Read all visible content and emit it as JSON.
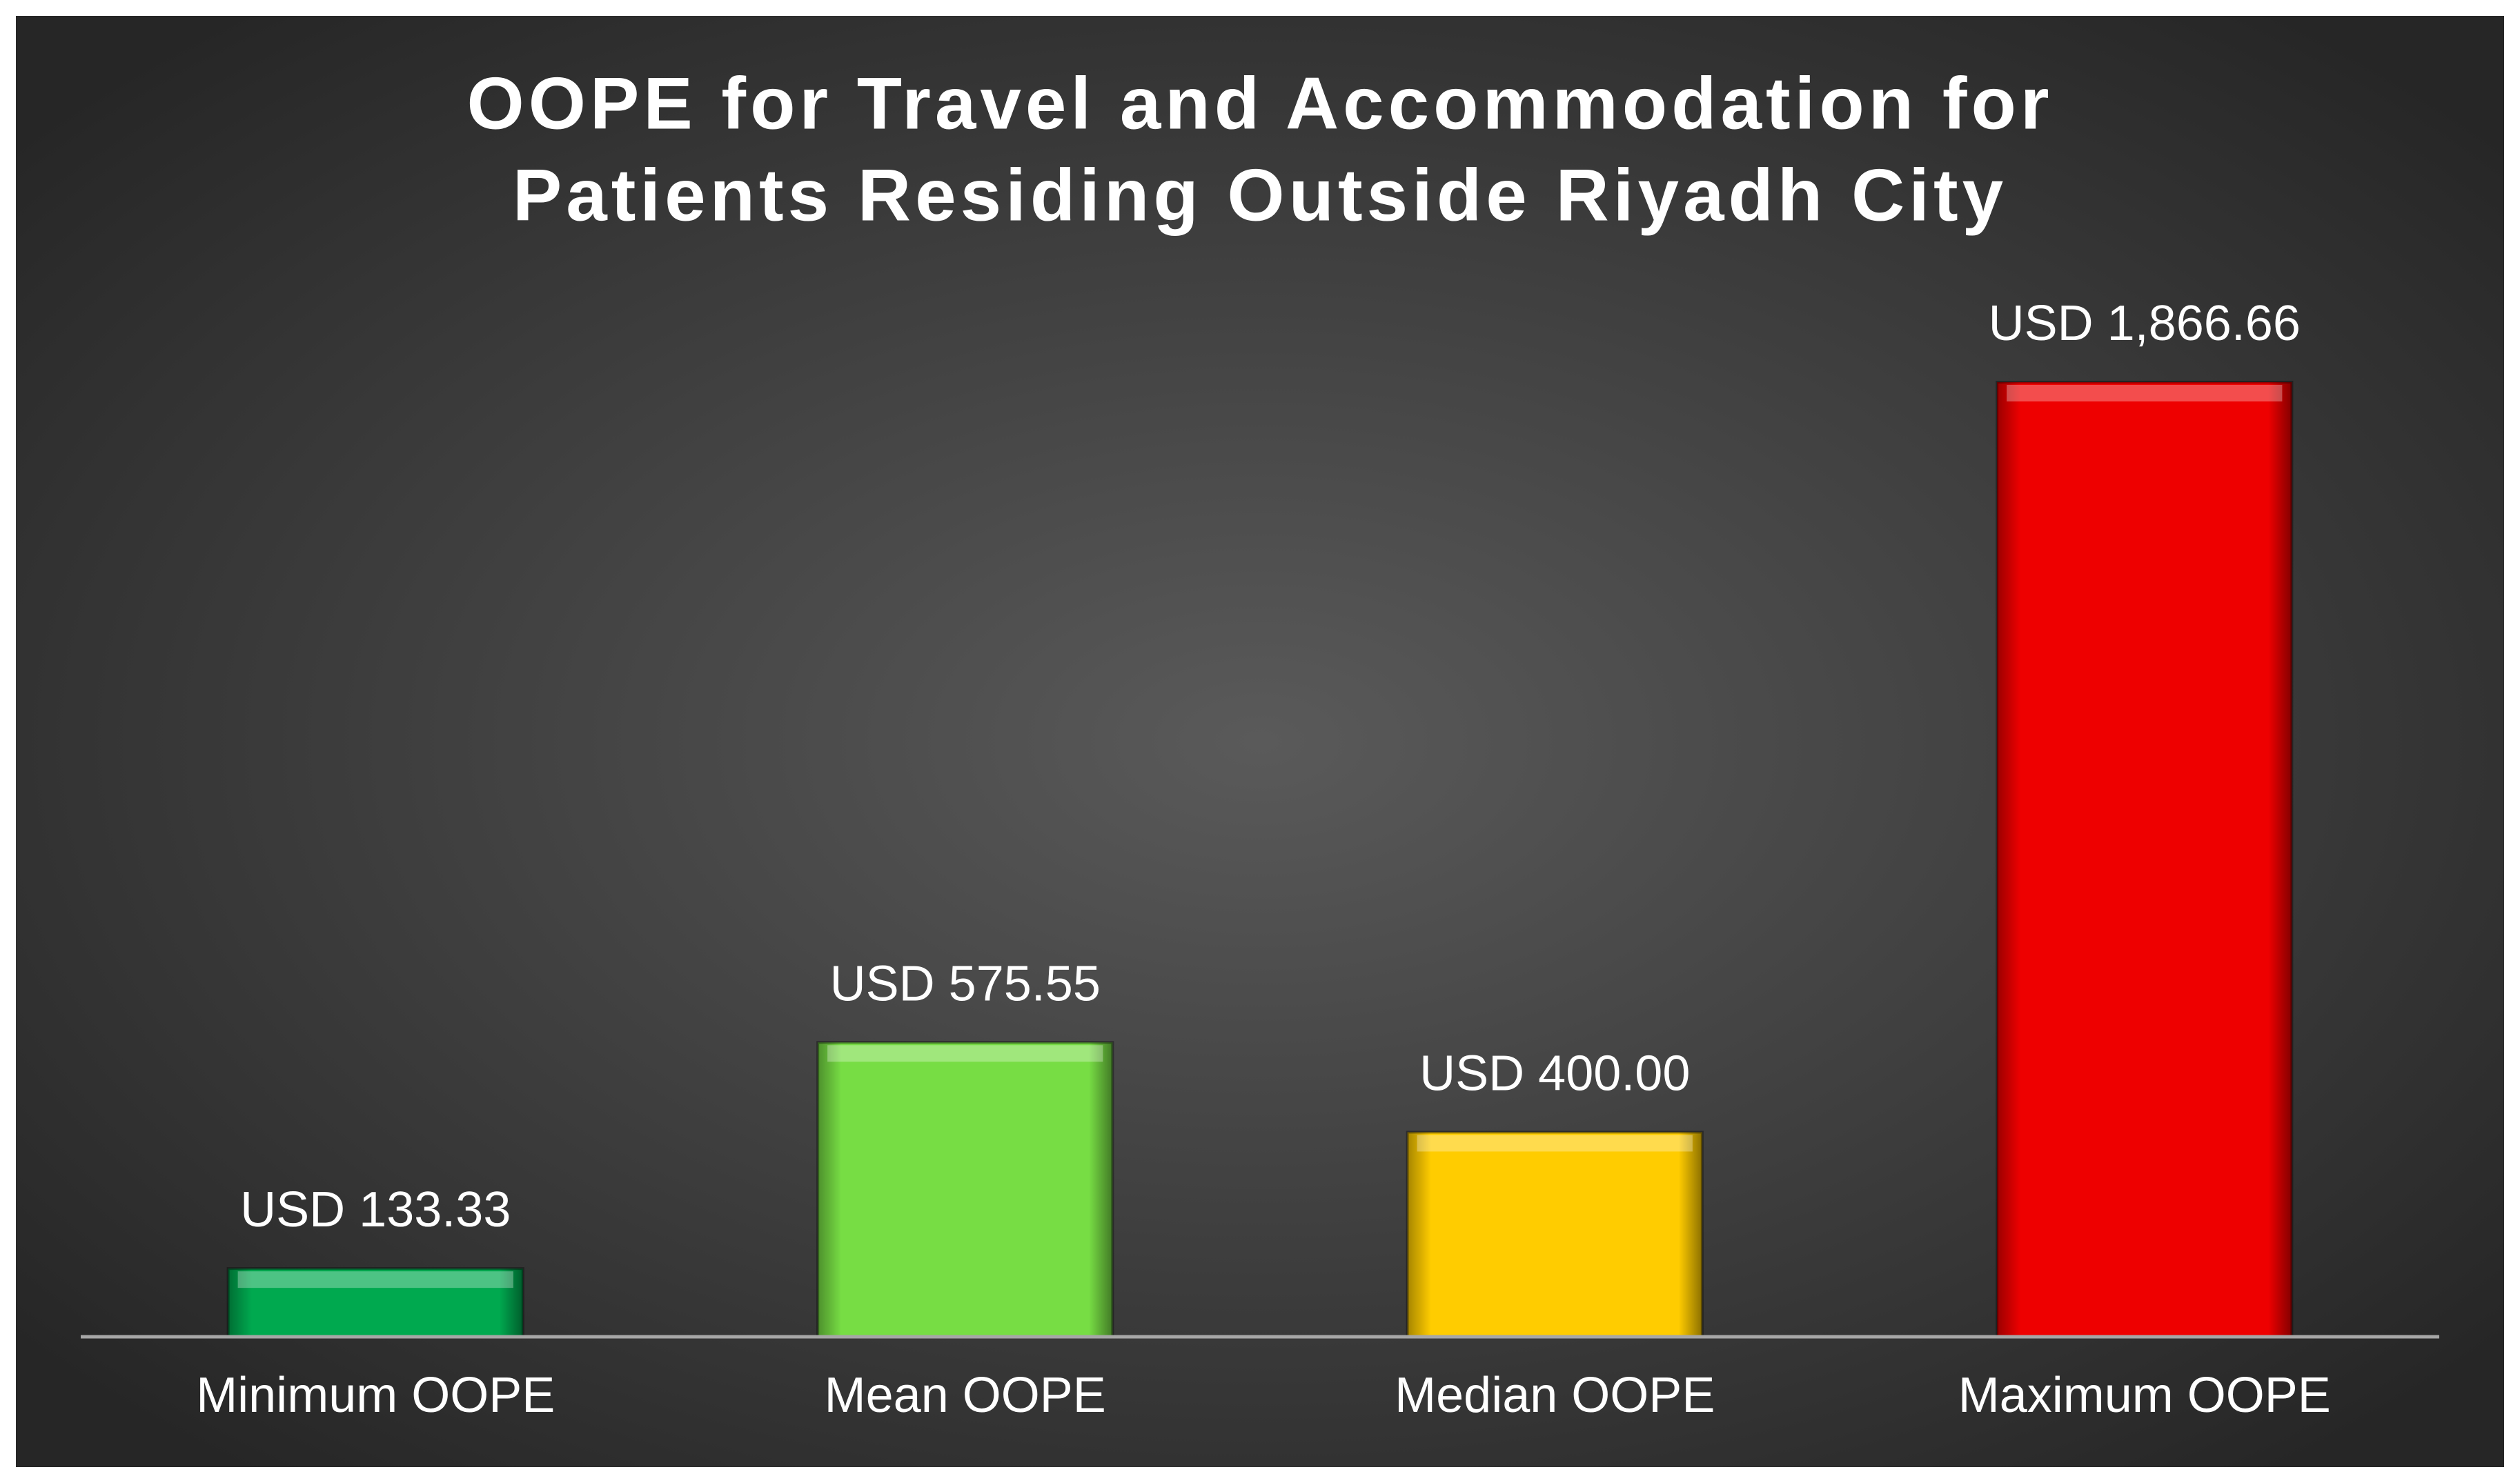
{
  "chart_data": {
    "type": "bar",
    "title": [
      "OOPE for Travel and Accommodation for",
      "Patients Residing Outside Riyadh City"
    ],
    "categories": [
      "Minimum OOPE",
      "Mean OOPE",
      "Median OOPE",
      "Maximum OOPE"
    ],
    "values": [
      133.33,
      575.55,
      400.0,
      1866.66
    ],
    "value_labels": [
      "USD 133.33",
      "USD 575.55",
      "USD 400.00",
      "USD 1,866.66"
    ],
    "colors": [
      "#00a94f",
      "#77dd44",
      "#ffcc00",
      "#ee0000"
    ]
  }
}
